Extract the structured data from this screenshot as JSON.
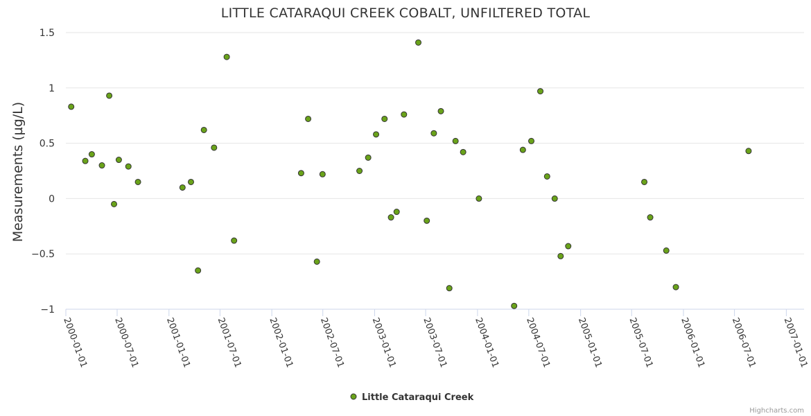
{
  "chart_data": {
    "type": "scatter",
    "title": "LITTLE CATARAQUI CREEK COBALT, UNFILTERED TOTAL",
    "xlabel": "",
    "ylabel": "Measurements (µg/L)",
    "ylim": [
      -1,
      1.5
    ],
    "yticks": [
      "1.5",
      "1",
      "0.5",
      "0",
      "−0.5",
      "−1"
    ],
    "ytick_values": [
      1.5,
      1,
      0.5,
      0,
      -0.5,
      -1
    ],
    "xlim": [
      "2000-01-01",
      "2007-03-05"
    ],
    "xticks": [
      "2000-01-01",
      "2000-07-01",
      "2001-01-01",
      "2001-07-01",
      "2002-01-01",
      "2002-07-01",
      "2003-01-01",
      "2003-07-01",
      "2004-01-01",
      "2004-07-01",
      "2005-01-01",
      "2005-07-01",
      "2006-01-01",
      "2006-07-01",
      "2007-01-01"
    ],
    "marker_color": "#6aa31a",
    "grid": true,
    "legend_position": "bottom-center",
    "series": [
      {
        "name": "Little Cataraqui Creek",
        "points": [
          {
            "x": "2000-01-20",
            "y": 0.83
          },
          {
            "x": "2000-03-10",
            "y": 0.34
          },
          {
            "x": "2000-04-02",
            "y": 0.4
          },
          {
            "x": "2000-05-08",
            "y": 0.3
          },
          {
            "x": "2000-06-03",
            "y": 0.93
          },
          {
            "x": "2000-06-20",
            "y": -0.05
          },
          {
            "x": "2000-07-07",
            "y": 0.35
          },
          {
            "x": "2000-08-10",
            "y": 0.29
          },
          {
            "x": "2000-09-13",
            "y": 0.15
          },
          {
            "x": "2001-02-18",
            "y": 0.1
          },
          {
            "x": "2001-03-20",
            "y": 0.15
          },
          {
            "x": "2001-04-14",
            "y": -0.65
          },
          {
            "x": "2001-05-05",
            "y": 0.62
          },
          {
            "x": "2001-06-10",
            "y": 0.46
          },
          {
            "x": "2001-07-25",
            "y": 1.28
          },
          {
            "x": "2001-08-20",
            "y": -0.38
          },
          {
            "x": "2002-04-15",
            "y": 0.23
          },
          {
            "x": "2002-05-10",
            "y": 0.72
          },
          {
            "x": "2002-06-10",
            "y": -0.57
          },
          {
            "x": "2002-06-30",
            "y": 0.22
          },
          {
            "x": "2002-11-08",
            "y": 0.25
          },
          {
            "x": "2002-12-09",
            "y": 0.37
          },
          {
            "x": "2003-01-06",
            "y": 0.58
          },
          {
            "x": "2003-02-05",
            "y": 0.72
          },
          {
            "x": "2003-02-28",
            "y": -0.17
          },
          {
            "x": "2003-03-20",
            "y": -0.12
          },
          {
            "x": "2003-04-15",
            "y": 0.76
          },
          {
            "x": "2003-06-05",
            "y": 1.41
          },
          {
            "x": "2003-07-05",
            "y": -0.2
          },
          {
            "x": "2003-07-30",
            "y": 0.59
          },
          {
            "x": "2003-08-24",
            "y": 0.79
          },
          {
            "x": "2003-09-23",
            "y": -0.81
          },
          {
            "x": "2003-10-15",
            "y": 0.52
          },
          {
            "x": "2003-11-11",
            "y": 0.42
          },
          {
            "x": "2004-01-06",
            "y": 0.0
          },
          {
            "x": "2004-05-10",
            "y": -0.97
          },
          {
            "x": "2004-06-10",
            "y": 0.44
          },
          {
            "x": "2004-07-10",
            "y": 0.52
          },
          {
            "x": "2004-08-11",
            "y": 0.97
          },
          {
            "x": "2004-09-04",
            "y": 0.2
          },
          {
            "x": "2004-10-01",
            "y": 0.0
          },
          {
            "x": "2004-10-22",
            "y": -0.52
          },
          {
            "x": "2004-11-18",
            "y": -0.43
          },
          {
            "x": "2005-08-15",
            "y": 0.15
          },
          {
            "x": "2005-09-05",
            "y": -0.17
          },
          {
            "x": "2005-11-01",
            "y": -0.47
          },
          {
            "x": "2005-12-05",
            "y": -0.8
          },
          {
            "x": "2006-08-20",
            "y": 0.43
          }
        ]
      }
    ],
    "legend": [
      {
        "label": "Little Cataraqui Creek",
        "color": "#6aa31a"
      }
    ],
    "credits": "Highcharts.com"
  }
}
